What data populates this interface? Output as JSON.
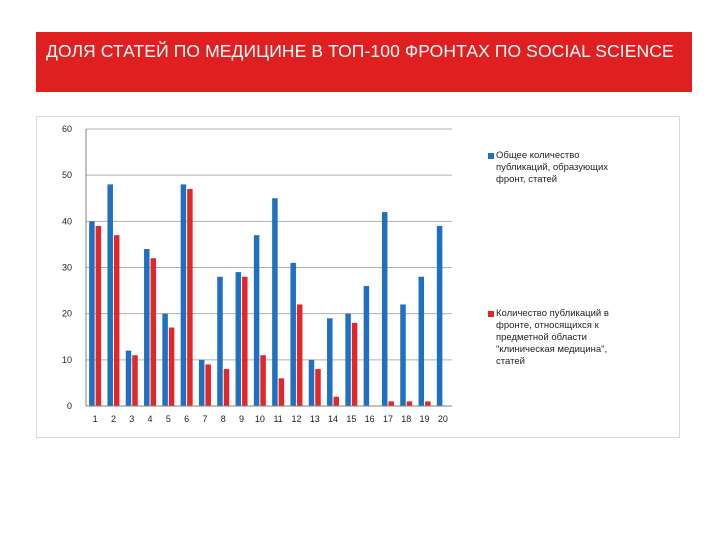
{
  "slide": {
    "title": "ДОЛЯ  СТАТЕЙ  ПО МЕДИЦИНЕ  В ТОП-100 ФРОНТАХ ПО SOCIAL SCIENCE",
    "banner_color": "#e02020"
  },
  "chart_data": {
    "type": "bar",
    "title": "",
    "xlabel": "",
    "ylabel": "",
    "categories": [
      "1",
      "2",
      "3",
      "4",
      "5",
      "6",
      "7",
      "8",
      "9",
      "10",
      "11",
      "12",
      "13",
      "14",
      "15",
      "16",
      "17",
      "18",
      "19",
      "20"
    ],
    "ylim": [
      0,
      60
    ],
    "yticks": [
      "0",
      "10",
      "20",
      "30",
      "40",
      "50",
      "60"
    ],
    "grid": true,
    "legend_position": "right",
    "series": [
      {
        "name": "Общее количество публикаций, образующих фронт, статей",
        "color": "#1f6fc2",
        "values": [
          40,
          48,
          12,
          34,
          20,
          48,
          10,
          28,
          29,
          37,
          45,
          31,
          10,
          19,
          20,
          26,
          42,
          22,
          28,
          39
        ]
      },
      {
        "name": "Количество публикаций в фронте, относящихся к предметной области \"клиническая медицина\", статей",
        "color": "#e02828",
        "values": [
          39,
          37,
          11,
          32,
          17,
          47,
          9,
          8,
          28,
          11,
          6,
          22,
          8,
          2,
          18,
          0,
          1,
          1,
          1,
          0
        ]
      }
    ]
  }
}
